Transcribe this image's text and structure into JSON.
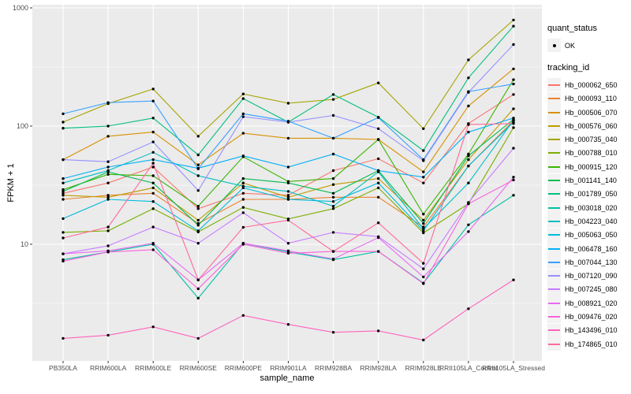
{
  "figure": {
    "y_axis": {
      "title": "FPKM + 1",
      "tick_labels": [
        "1000",
        "100",
        "10"
      ]
    },
    "x_axis": {
      "title": "sample_name"
    }
  },
  "legend": {
    "quant_status_title": "quant_status",
    "quant_status_item": "OK",
    "tracking_id_title": "tracking_id"
  },
  "chart_data": {
    "type": "line",
    "title": "",
    "xlabel": "sample_name",
    "ylabel": "FPKM + 1",
    "y_scale": "log10",
    "ylim": [
      1,
      1000
    ],
    "y_ticks": [
      10,
      100,
      1000
    ],
    "y_minor_ticks": [
      3.162,
      31.62,
      316.2
    ],
    "grid": true,
    "panel_background": "#EBEBEB",
    "grid_color": "#FFFFFF",
    "point_color": "#000000",
    "point_shape": "filled-circle",
    "legend_position": "right",
    "categories": [
      "PB350LA",
      "RRIM600LA",
      "RRIM600LE",
      "RRIM600SE",
      "RRIM600PE",
      "RRIM901LA",
      "RRIM928BA",
      "RRIM928LA",
      "RRIM928LE",
      "RRII105LA_Control",
      "RRII105LA_Stressed"
    ],
    "series": [
      {
        "name": "Hb_000062_650",
        "color": "#F8766D",
        "values": [
          27,
          33,
          45,
          20,
          27,
          26,
          42,
          53,
          33,
          105,
          185
        ]
      },
      {
        "name": "Hb_000093_110",
        "color": "#EA8331",
        "values": [
          24,
          26,
          27,
          15,
          24,
          24,
          25,
          25,
          14,
          46,
          111
        ]
      },
      {
        "name": "Hb_000506_070",
        "color": "#D89000",
        "values": [
          52,
          82,
          89,
          47,
          87,
          79,
          79,
          77,
          41,
          148,
          305
        ]
      },
      {
        "name": "Hb_000576_060",
        "color": "#C09B00",
        "values": [
          26,
          25,
          30,
          16,
          33,
          25,
          32,
          36,
          16,
          52,
          140
        ]
      },
      {
        "name": "Hb_000735_040",
        "color": "#A3A500",
        "values": [
          108,
          155,
          206,
          82,
          187,
          156,
          168,
          232,
          95,
          363,
          790
        ]
      },
      {
        "name": "Hb_000788_010",
        "color": "#7CAE00",
        "values": [
          12.6,
          13,
          20,
          12.7,
          20.5,
          16.4,
          20,
          30,
          12.5,
          22,
          97
        ]
      },
      {
        "name": "Hb_000915_120",
        "color": "#39B600",
        "values": [
          29,
          39,
          38,
          21,
          55,
          34,
          36,
          77,
          18,
          58,
          247
        ]
      },
      {
        "name": "Hb_001141_140",
        "color": "#00BB4E",
        "values": [
          28,
          41,
          33,
          14.5,
          36,
          33,
          27,
          42,
          15,
          56,
          114
        ]
      },
      {
        "name": "Hb_001789_050",
        "color": "#00BF7D",
        "values": [
          96,
          100,
          117,
          57,
          171,
          108,
          185,
          119,
          62,
          256,
          700
        ]
      },
      {
        "name": "Hb_003018_020",
        "color": "#00C1A3",
        "values": [
          7.4,
          8.6,
          10,
          3.5,
          10.2,
          8.6,
          7.4,
          8.7,
          4.7,
          14.6,
          26
        ]
      },
      {
        "name": "Hb_004223_040",
        "color": "#00BFC4",
        "values": [
          33,
          42,
          60,
          38,
          31,
          28,
          21,
          41,
          13.5,
          33,
          112
        ]
      },
      {
        "name": "Hb_005063_050",
        "color": "#00BBDB",
        "values": [
          16.5,
          24,
          23,
          13,
          30,
          24,
          23,
          33,
          13,
          46,
          108
        ]
      },
      {
        "name": "Hb_006478_160",
        "color": "#00B0F6",
        "values": [
          36,
          45,
          52,
          44,
          56,
          45,
          58,
          42,
          37,
          89,
          117
        ]
      },
      {
        "name": "Hb_007044_130",
        "color": "#35A2FF",
        "values": [
          127,
          158,
          163,
          43.5,
          127,
          110,
          79,
          118,
          52,
          196,
          227
        ]
      },
      {
        "name": "Hb_007120_090",
        "color": "#9590FF",
        "values": [
          52,
          50,
          73.5,
          28.5,
          120,
          108,
          123,
          95,
          51,
          193,
          490
        ]
      },
      {
        "name": "Hb_007245_080",
        "color": "#C77CFF",
        "values": [
          8.3,
          9.7,
          14,
          10.2,
          18.5,
          10.2,
          12.6,
          11.6,
          6.2,
          22.6,
          65
        ]
      },
      {
        "name": "Hb_008921_020",
        "color": "#E76BF3",
        "values": [
          8.3,
          8.8,
          10.2,
          5,
          10.2,
          8.8,
          7.5,
          11.4,
          5.3,
          12.8,
          37
        ]
      },
      {
        "name": "Hb_009476_020",
        "color": "#FA62DB",
        "values": [
          7.2,
          8.6,
          9,
          4.2,
          10,
          8.4,
          8.7,
          8.7,
          4.65,
          22,
          35
        ]
      },
      {
        "name": "Hb_143496_010",
        "color": "#FF62BC",
        "values": [
          1.6,
          1.7,
          2.0,
          1.6,
          2.5,
          2.1,
          1.8,
          1.85,
          1.55,
          2.85,
          5
        ]
      },
      {
        "name": "Hb_174865_010",
        "color": "#FF6A98",
        "values": [
          11.3,
          14,
          48.5,
          5,
          13.9,
          16,
          8.7,
          15.2,
          6.9,
          103,
          105
        ]
      }
    ]
  }
}
